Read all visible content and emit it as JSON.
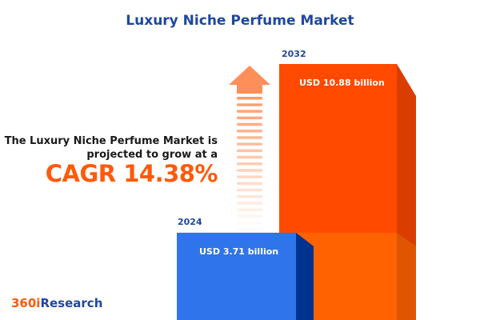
{
  "title": "Luxury Niche Perfume Market",
  "description_line1": "The Luxury Niche Perfume Market is",
  "description_line2": "projected to grow at a",
  "cagr_text": "CAGR 14.38%",
  "logo": {
    "prefix": "360i",
    "suffix": "Research"
  },
  "colors": {
    "title": "#1f47a0",
    "accent": "#ff5a0a",
    "bar_2024": "#2f74ea",
    "bar_2032": "#ff4a00"
  },
  "chart_data": {
    "type": "bar",
    "categories": [
      "2024",
      "2032"
    ],
    "values": [
      3.71,
      10.88
    ],
    "unit": "USD billion",
    "data_labels": [
      "USD 3.71 billion",
      "USD 10.88 billion"
    ],
    "cagr": 14.38
  }
}
